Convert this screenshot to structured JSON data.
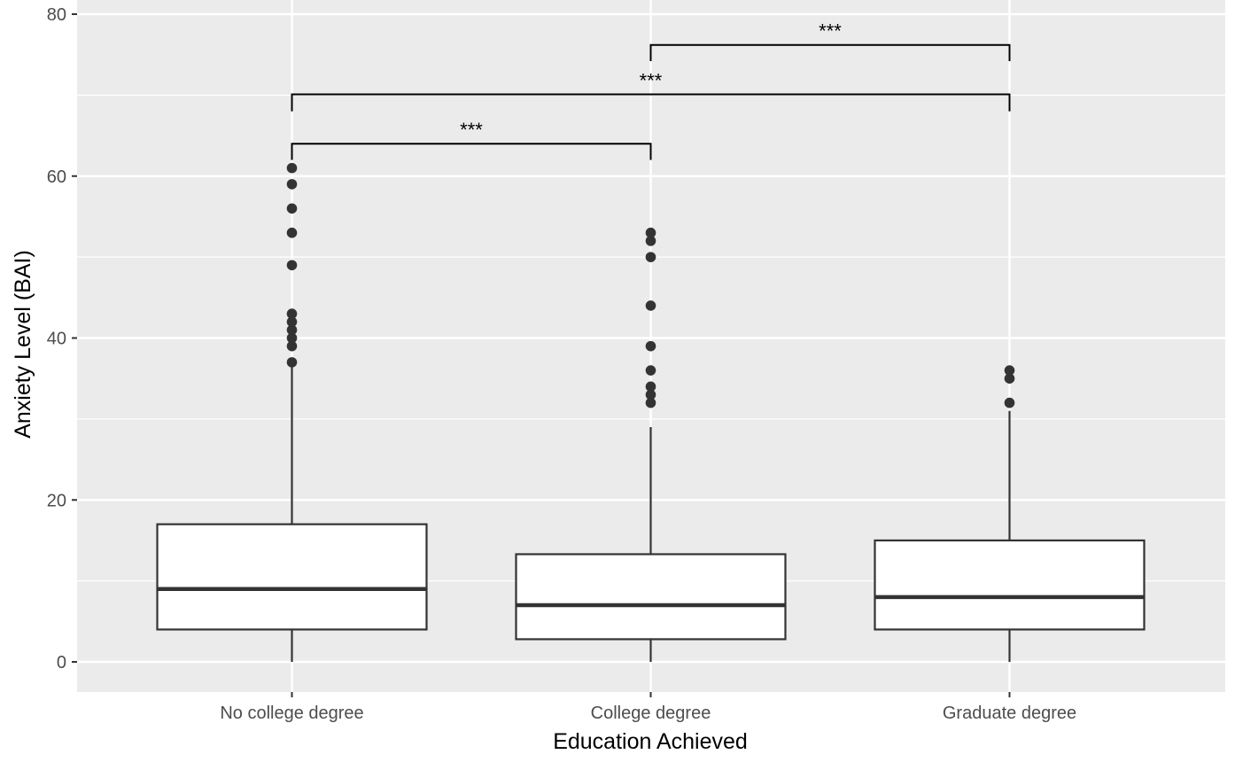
{
  "chart_data": {
    "type": "boxplot",
    "xlabel": "Education Achieved",
    "ylabel": "Anxiety Level (BAI)",
    "ylim": [
      -4,
      80
    ],
    "y_ticks": [
      0,
      20,
      40,
      60,
      80
    ],
    "y_tick_labels": [
      "0",
      "20",
      "40",
      "60",
      "80"
    ],
    "grid": true,
    "background": "#ebebeb",
    "categories": [
      "No college degree",
      "College degree",
      "Graduate degree"
    ],
    "boxes": [
      {
        "category": "No college degree",
        "whisker_low": 0,
        "q1": 4,
        "median": 9,
        "q3": 17,
        "whisker_high": 37,
        "outliers": [
          37,
          39,
          40,
          41,
          42,
          43,
          49,
          53,
          56,
          59,
          61
        ]
      },
      {
        "category": "College degree",
        "whisker_low": 0,
        "q1": 2.8,
        "median": 7,
        "q3": 13.3,
        "whisker_high": 29,
        "outliers": [
          32,
          33,
          34,
          36,
          39,
          44,
          50,
          52,
          53
        ]
      },
      {
        "category": "Graduate degree",
        "whisker_low": 0,
        "q1": 4,
        "median": 8,
        "q3": 15,
        "whisker_high": 31,
        "outliers": [
          32,
          35,
          36
        ]
      }
    ],
    "significance": [
      {
        "from": "No college degree",
        "to": "College degree",
        "y": 64,
        "tip": 62,
        "label": "***"
      },
      {
        "from": "No college degree",
        "to": "Graduate degree",
        "y": 70.1,
        "tip": 68,
        "label": "***"
      },
      {
        "from": "College degree",
        "to": "Graduate degree",
        "y": 76.2,
        "tip": 74.2,
        "label": "***"
      }
    ]
  }
}
